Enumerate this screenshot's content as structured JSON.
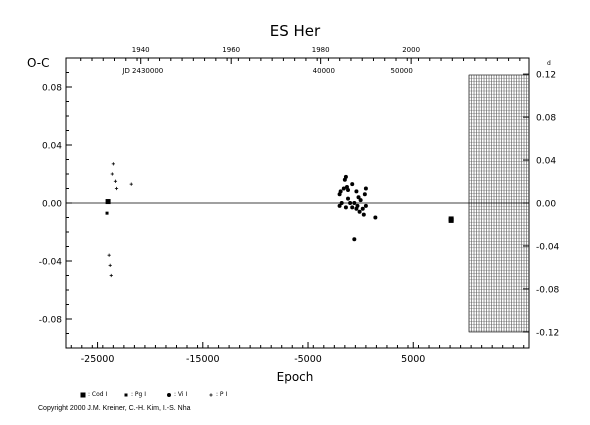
{
  "chart_data": {
    "type": "scatter",
    "title": "ES Her",
    "xlabel": "Epoch",
    "ylabel": "O-C",
    "yright_label": "d",
    "xlim": [
      -28000,
      16000
    ],
    "ylim": [
      -0.1,
      0.1
    ],
    "yright_lim": [
      -0.135,
      0.135
    ],
    "x_ticks": [
      "-25000",
      "-15000",
      "-5000",
      "5000"
    ],
    "x_tick_values": [
      -25000,
      -15000,
      -5000,
      5000
    ],
    "y_ticks": [
      "-0.08",
      "-0.04",
      "0.00",
      "0.04",
      "0.08"
    ],
    "y_tick_values": [
      -0.08,
      -0.04,
      0.0,
      0.04,
      0.08
    ],
    "y_right_ticks": [
      "-0.12",
      "-0.08",
      "-0.04",
      "0.00",
      "0.04",
      "0.08",
      "0.12"
    ],
    "y_right_tick_values": [
      -0.12,
      -0.08,
      -0.04,
      0.0,
      0.04,
      0.08,
      0.12
    ],
    "top_year_ticks": [
      "1940",
      "1960",
      "1980",
      "2000"
    ],
    "top_year_tick_values": [
      -20900,
      -12300,
      -3800,
      4800
    ],
    "jd_labels": [
      "JD 2430000",
      "40000",
      "50000"
    ],
    "jd_label_values": [
      -20700,
      -3500,
      3900
    ],
    "reference_line": 0.0,
    "grid_block_x": [
      10300,
      16000
    ],
    "series": [
      {
        "name": "Cod I",
        "marker": "square",
        "points": [
          [
            -24000,
            0.001
          ],
          [
            8600,
            -0.011
          ],
          [
            8600,
            -0.012
          ]
        ]
      },
      {
        "name": "Pg I",
        "marker": "small-square",
        "points": [
          [
            -24100,
            -0.007
          ]
        ]
      },
      {
        "name": "Vi I",
        "marker": "circle",
        "points": [
          [
            -2000,
            -0.002
          ],
          [
            -2000,
            0.006
          ],
          [
            -1900,
            0.008
          ],
          [
            -1800,
            0.0
          ],
          [
            -1600,
            0.01
          ],
          [
            -1500,
            0.016
          ],
          [
            -1400,
            0.018
          ],
          [
            -1400,
            -0.003
          ],
          [
            -1300,
            0.011
          ],
          [
            -1200,
            0.009
          ],
          [
            -1200,
            0.003
          ],
          [
            -1000,
            0.0
          ],
          [
            -800,
            0.013
          ],
          [
            -800,
            -0.003
          ],
          [
            -600,
            0.0
          ],
          [
            -600,
            -0.025
          ],
          [
            -400,
            0.008
          ],
          [
            -400,
            -0.004
          ],
          [
            -300,
            -0.002
          ],
          [
            -200,
            0.004
          ],
          [
            -100,
            -0.006
          ],
          [
            0,
            0.002
          ],
          [
            200,
            -0.004
          ],
          [
            300,
            -0.008
          ],
          [
            400,
            0.006
          ],
          [
            500,
            0.01
          ],
          [
            500,
            -0.002
          ],
          [
            1400,
            -0.01
          ]
        ]
      },
      {
        "name": "P I",
        "marker": "plus",
        "points": [
          [
            -23500,
            0.027
          ],
          [
            -23600,
            0.02
          ],
          [
            -23200,
            0.01
          ],
          [
            -23300,
            0.015
          ],
          [
            -21800,
            0.013
          ],
          [
            -23900,
            -0.036
          ],
          [
            -23800,
            -0.043
          ],
          [
            -23700,
            -0.05
          ]
        ]
      }
    ]
  },
  "legend": [
    {
      "name": "Cod I",
      "label": ": Cod I",
      "marker": "square"
    },
    {
      "name": "Pg I",
      "label": ": Pg I",
      "marker": "small-square"
    },
    {
      "name": "Vi I",
      "label": ": Vi I",
      "marker": "circle"
    },
    {
      "name": "P I",
      "label": ": P I",
      "marker": "plus"
    }
  ],
  "copyright": "Copyright 2000 J.M. Kreiner, C.-H. Kim, I.-S. Nha"
}
